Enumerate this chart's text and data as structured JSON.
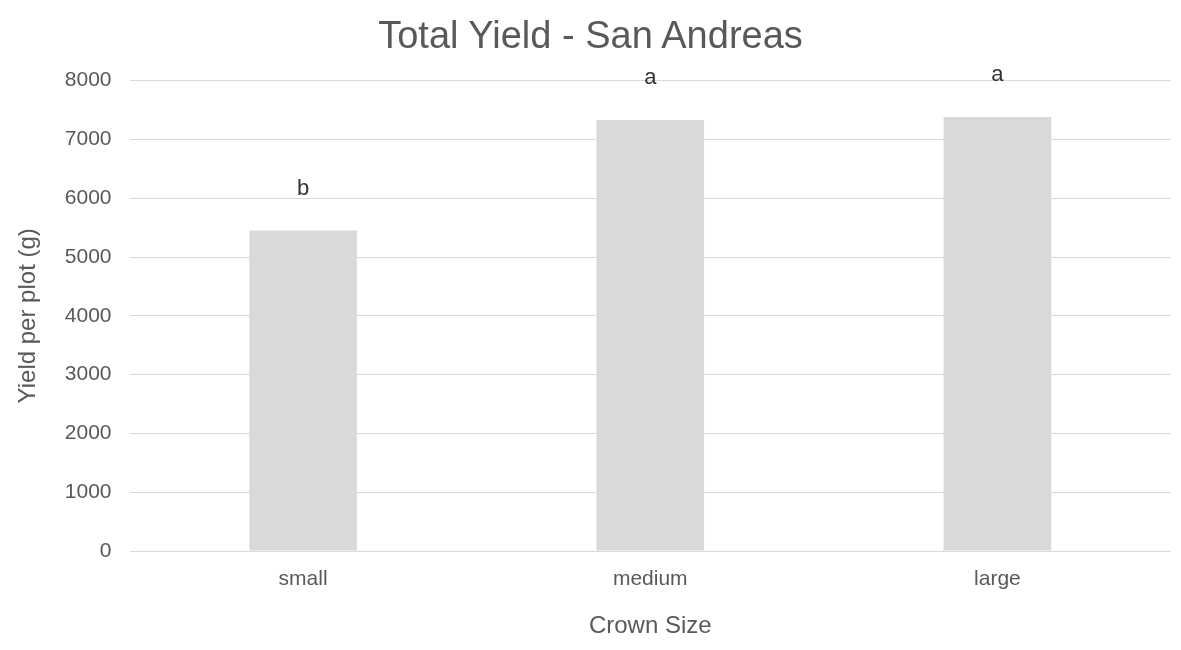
{
  "chart_data": {
    "type": "bar",
    "title": "Total Yield - San Andreas",
    "xlabel": "Crown Size",
    "ylabel": "Yield per plot (g)",
    "categories": [
      "small",
      "medium",
      "large"
    ],
    "values": [
      5450,
      7330,
      7380
    ],
    "color": "#d9d9d9",
    "ylim": [
      0,
      8000
    ],
    "yticks": [
      0,
      1000,
      2000,
      3000,
      4000,
      5000,
      6000,
      7000,
      8000
    ],
    "grid": "y",
    "annotations": [
      "b",
      "a",
      "a"
    ]
  }
}
